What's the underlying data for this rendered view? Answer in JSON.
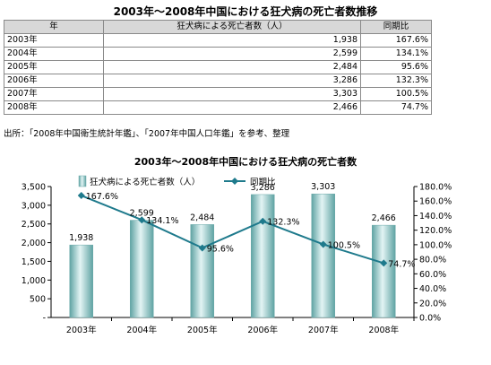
{
  "table": {
    "title": "2003年～2008年中国における狂犬病の死亡者数推移",
    "headers": [
      "年",
      "狂犬病による死亡者数（人）",
      "同期比"
    ],
    "rows": [
      [
        "2003年",
        "1,938",
        "167.6%"
      ],
      [
        "2004年",
        "2,599",
        "134.1%"
      ],
      [
        "2005年",
        "2,484",
        "95.6%"
      ],
      [
        "2006年",
        "3,286",
        "132.3%"
      ],
      [
        "2007年",
        "3,303",
        "100.5%"
      ],
      [
        "2008年",
        "2,466",
        "74.7%"
      ]
    ]
  },
  "source": "出所：「2008年中国衛生統計年鑑」、「2007年中国人口年鑑」を参考、整理",
  "colors": {
    "bar": "#8fc8c8",
    "line": "#1e7a8c"
  },
  "chart_data": {
    "type": "bar",
    "title": "2003年～2008年中国における狂犬病の死亡者数",
    "categories": [
      "2003年",
      "2004年",
      "2005年",
      "2006年",
      "2007年",
      "2008年"
    ],
    "series": [
      {
        "name": "狂犬病による死亡者数（人）",
        "type": "bar",
        "axis": "left",
        "values": [
          1938,
          2599,
          2484,
          3286,
          3303,
          2466
        ],
        "labels": [
          "1,938",
          "2,599",
          "2,484",
          "3,286",
          "3,303",
          "2,466"
        ]
      },
      {
        "name": "同期比",
        "type": "line",
        "axis": "right",
        "values": [
          167.6,
          134.1,
          95.6,
          132.3,
          100.5,
          74.7
        ],
        "labels": [
          "167.6%",
          "134.1%",
          "95.6%",
          "132.3%",
          "100.5%",
          "74.7%"
        ]
      }
    ],
    "ylim": [
      0,
      3500
    ],
    "y_ticks": [
      "3,500",
      "3,000",
      "2,500",
      "2,000",
      "1,500",
      "1,000",
      "500",
      "-"
    ],
    "y2lim": [
      0,
      180
    ],
    "y2_ticks": [
      "180.0%",
      "160.0%",
      "140.0%",
      "120.0%",
      "100.0%",
      "80.0%",
      "60.0%",
      "40.0%",
      "20.0%",
      "0.0%"
    ],
    "legend_position": "top",
    "grid": false
  }
}
